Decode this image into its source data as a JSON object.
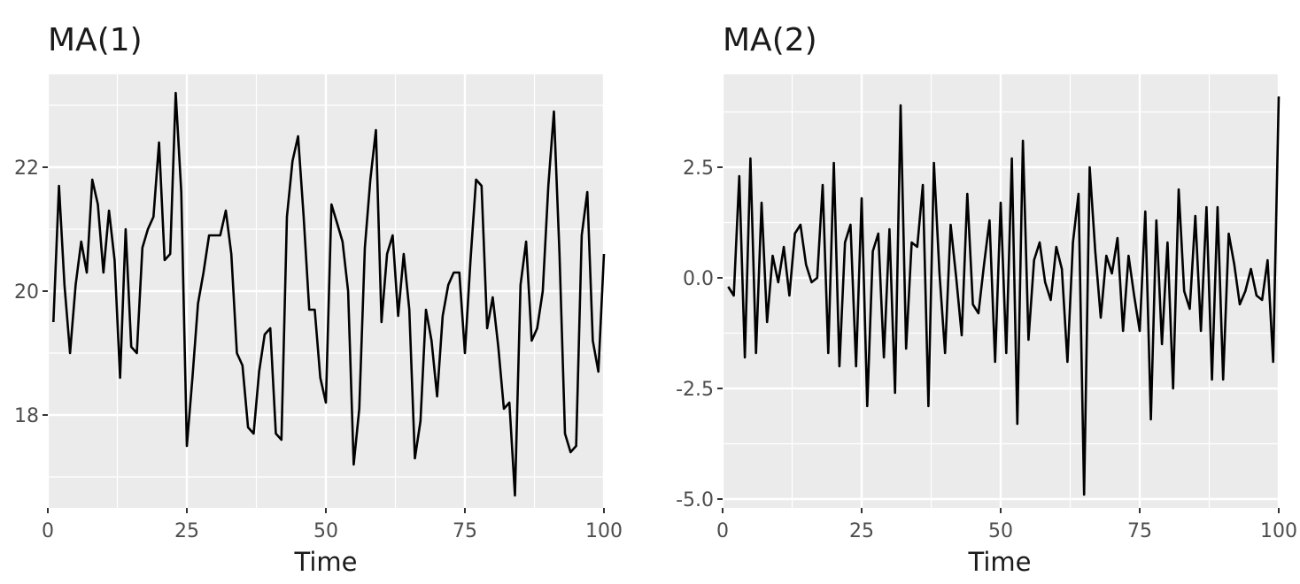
{
  "chart_data": [
    {
      "type": "line",
      "title": "MA(1)",
      "xlabel": "Time",
      "ylabel": "",
      "xlim": [
        0,
        100
      ],
      "ylim": [
        16.5,
        23.5
      ],
      "x_ticks": [
        0,
        25,
        50,
        75,
        100
      ],
      "x_tick_labels": [
        "0",
        "25",
        "50",
        "75",
        "100"
      ],
      "y_ticks": [
        18,
        20,
        22
      ],
      "y_tick_labels": [
        "18",
        "20",
        "22"
      ],
      "grid": true,
      "series": [
        {
          "x": [
            1,
            2,
            3,
            4,
            5,
            6,
            7,
            8,
            9,
            10,
            11,
            12,
            13,
            14,
            15,
            16,
            17,
            18,
            19,
            20,
            21,
            22,
            23,
            24,
            25,
            26,
            27,
            28,
            29,
            30,
            31,
            32,
            33,
            34,
            35,
            36,
            37,
            38,
            39,
            40,
            41,
            42,
            43,
            44,
            45,
            46,
            47,
            48,
            49,
            50,
            51,
            52,
            53,
            54,
            55,
            56,
            57,
            58,
            59,
            60,
            61,
            62,
            63,
            64,
            65,
            66,
            67,
            68,
            69,
            70,
            71,
            72,
            73,
            74,
            75,
            76,
            77,
            78,
            79,
            80,
            81,
            82,
            83,
            84,
            85,
            86,
            87,
            88,
            89,
            90,
            91,
            92,
            93,
            94,
            95,
            96,
            97,
            98,
            99,
            100
          ],
          "values": [
            19.5,
            21.7,
            20.1,
            19.0,
            20.1,
            20.8,
            20.3,
            21.8,
            21.4,
            20.3,
            21.3,
            20.5,
            18.6,
            21.0,
            19.1,
            19.0,
            20.7,
            21.0,
            21.2,
            22.4,
            20.5,
            20.6,
            23.2,
            21.6,
            17.5,
            18.6,
            19.8,
            20.3,
            20.9,
            20.9,
            20.9,
            21.3,
            20.6,
            19.0,
            18.8,
            17.8,
            17.7,
            18.7,
            19.3,
            19.4,
            17.7,
            17.6,
            21.2,
            22.1,
            22.5,
            21.2,
            19.7,
            19.7,
            18.6,
            18.2,
            21.4,
            21.1,
            20.8,
            20.0,
            17.2,
            18.1,
            20.7,
            21.8,
            22.6,
            19.5,
            20.6,
            20.9,
            19.6,
            20.6,
            19.7,
            17.3,
            17.9,
            19.7,
            19.2,
            18.3,
            19.6,
            20.1,
            20.3,
            20.3,
            19.0,
            20.5,
            21.8,
            21.7,
            19.4,
            19.9,
            19.1,
            18.1,
            18.2,
            16.7,
            20.1,
            20.8,
            19.2,
            19.4,
            20.0,
            21.7,
            22.9,
            20.6,
            17.7,
            17.4,
            17.5,
            20.9,
            21.6,
            19.2,
            18.7,
            20.6
          ]
        }
      ]
    },
    {
      "type": "line",
      "title": "MA(2)",
      "xlabel": "Time",
      "ylabel": "",
      "xlim": [
        0,
        100
      ],
      "ylim": [
        -5.2,
        4.6
      ],
      "x_ticks": [
        0,
        25,
        50,
        75,
        100
      ],
      "x_tick_labels": [
        "0",
        "25",
        "50",
        "75",
        "100"
      ],
      "y_ticks": [
        -5.0,
        -2.5,
        0.0,
        2.5
      ],
      "y_tick_labels": [
        "-5.0",
        "-2.5",
        "0.0",
        "2.5"
      ],
      "grid": true,
      "series": [
        {
          "x": [
            1,
            2,
            3,
            4,
            5,
            6,
            7,
            8,
            9,
            10,
            11,
            12,
            13,
            14,
            15,
            16,
            17,
            18,
            19,
            20,
            21,
            22,
            23,
            24,
            25,
            26,
            27,
            28,
            29,
            30,
            31,
            32,
            33,
            34,
            35,
            36,
            37,
            38,
            39,
            40,
            41,
            42,
            43,
            44,
            45,
            46,
            47,
            48,
            49,
            50,
            51,
            52,
            53,
            54,
            55,
            56,
            57,
            58,
            59,
            60,
            61,
            62,
            63,
            64,
            65,
            66,
            67,
            68,
            69,
            70,
            71,
            72,
            73,
            74,
            75,
            76,
            77,
            78,
            79,
            80,
            81,
            82,
            83,
            84,
            85,
            86,
            87,
            88,
            89,
            90,
            91,
            92,
            93,
            94,
            95,
            96,
            97,
            98,
            99,
            100
          ],
          "values": [
            -0.2,
            -0.4,
            2.3,
            -1.8,
            2.7,
            -1.7,
            1.7,
            -1.0,
            0.5,
            -0.1,
            0.7,
            -0.4,
            1.0,
            1.2,
            0.3,
            -0.1,
            0.0,
            2.1,
            -1.7,
            2.6,
            -2.0,
            0.8,
            1.2,
            -2.0,
            1.8,
            -2.9,
            0.6,
            1.0,
            -1.8,
            1.1,
            -2.6,
            3.9,
            -1.6,
            0.8,
            0.7,
            2.1,
            -2.9,
            2.6,
            0.1,
            -1.7,
            1.2,
            0.0,
            -1.3,
            1.9,
            -0.6,
            -0.8,
            0.3,
            1.3,
            -1.9,
            1.7,
            -1.7,
            2.7,
            -3.3,
            3.1,
            -1.4,
            0.4,
            0.8,
            -0.1,
            -0.5,
            0.7,
            0.2,
            -1.9,
            0.8,
            1.9,
            -4.9,
            2.5,
            0.6,
            -0.9,
            0.5,
            0.1,
            0.9,
            -1.2,
            0.5,
            -0.4,
            -1.2,
            1.5,
            -3.2,
            1.3,
            -1.5,
            0.8,
            -2.5,
            2.0,
            -0.3,
            -0.7,
            1.4,
            -1.2,
            1.6,
            -2.3,
            1.6,
            -2.3,
            1.0,
            0.3,
            -0.6,
            -0.3,
            0.2,
            -0.4,
            -0.5,
            0.4,
            -1.9,
            4.1
          ]
        }
      ]
    }
  ]
}
